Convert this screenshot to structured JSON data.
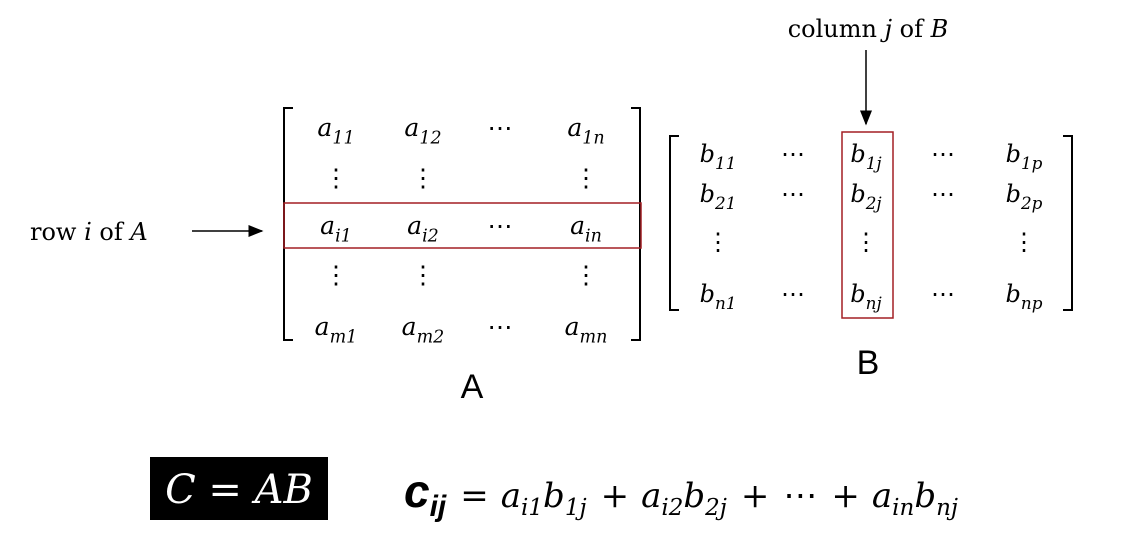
{
  "row_label": [
    "row ",
    "i",
    " of ",
    "A"
  ],
  "column_label": [
    "column ",
    "j",
    " of ",
    "B"
  ],
  "matrix_a": {
    "name": "A",
    "rows": [
      [
        {
          "base": "a",
          "sub": "11"
        },
        {
          "base": "a",
          "sub": "12"
        },
        "⋯",
        {
          "base": "a",
          "sub": "1n"
        }
      ],
      [
        "⋮",
        "⋮",
        null,
        "⋮"
      ],
      [
        {
          "base": "a",
          "sub": "i1"
        },
        {
          "base": "a",
          "sub": "i2"
        },
        "⋯",
        {
          "base": "a",
          "sub": "in"
        }
      ],
      [
        "⋮",
        "⋮",
        null,
        "⋮"
      ],
      [
        {
          "base": "a",
          "sub": "m1"
        },
        {
          "base": "a",
          "sub": "m2"
        },
        "⋯",
        {
          "base": "a",
          "sub": "mn"
        }
      ]
    ]
  },
  "matrix_b": {
    "name": "B",
    "rows": [
      [
        {
          "base": "b",
          "sub": "11"
        },
        "⋯",
        {
          "base": "b",
          "sub": "1j"
        },
        "⋯",
        {
          "base": "b",
          "sub": "1p"
        }
      ],
      [
        {
          "base": "b",
          "sub": "21"
        },
        "⋯",
        {
          "base": "b",
          "sub": "2j"
        },
        "⋯",
        {
          "base": "b",
          "sub": "2p"
        }
      ],
      [
        "⋮",
        null,
        "⋮",
        null,
        "⋮"
      ],
      [
        {
          "base": "b",
          "sub": "n1"
        },
        "⋯",
        {
          "base": "b",
          "sub": "nj"
        },
        "⋯",
        {
          "base": "b",
          "sub": "np"
        }
      ]
    ]
  },
  "definition": "C = AB",
  "formula": {
    "lhs": {
      "base": "c",
      "sub": "ij"
    },
    "rhs": [
      "=",
      {
        "base": "a",
        "sub": "i1"
      },
      {
        "base": "b",
        "sub": "1j"
      },
      "+",
      {
        "base": "a",
        "sub": "i2"
      },
      {
        "base": "b",
        "sub": "2j"
      },
      "+",
      "⋯",
      "+",
      {
        "base": "a",
        "sub": "in"
      },
      {
        "base": "b",
        "sub": "nj"
      }
    ]
  }
}
